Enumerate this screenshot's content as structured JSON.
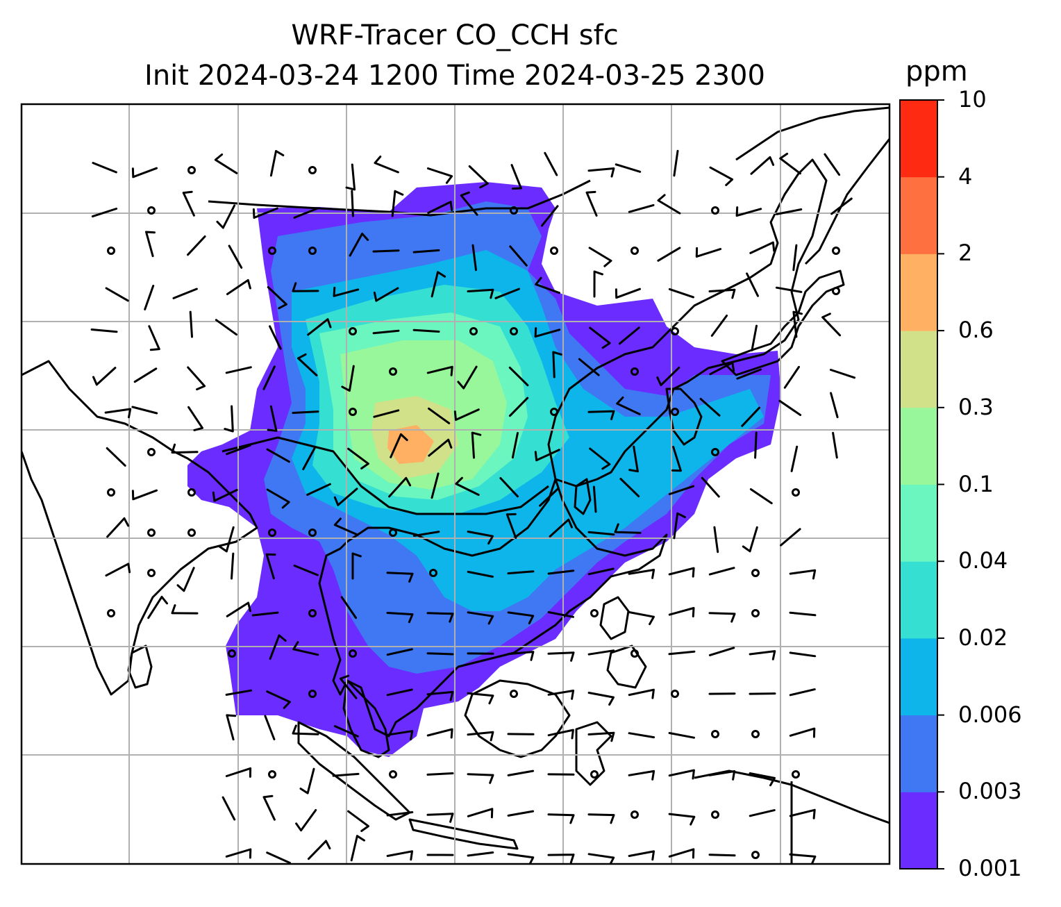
{
  "title": {
    "line1": "WRF-Tracer CO_CCH sfc",
    "line2": "Init 2024-03-24 1200 Time 2024-03-25 2300"
  },
  "colorbar": {
    "unit": "ppm",
    "tick_labels": [
      "0.001",
      "0.003",
      "0.006",
      "0.02",
      "0.04",
      "0.1",
      "0.3",
      "0.6",
      "2",
      "4",
      "10"
    ],
    "colors": [
      "#6a2cff",
      "#3f78f2",
      "#0db5ea",
      "#35dfd2",
      "#6bf6c0",
      "#98f79a",
      "#d0e18a",
      "#ffb063",
      "#ff7040",
      "#ff2a12"
    ]
  },
  "map": {
    "grid": true,
    "overlay": "wind barbs",
    "region": "South, Southeast and East Asia"
  }
}
